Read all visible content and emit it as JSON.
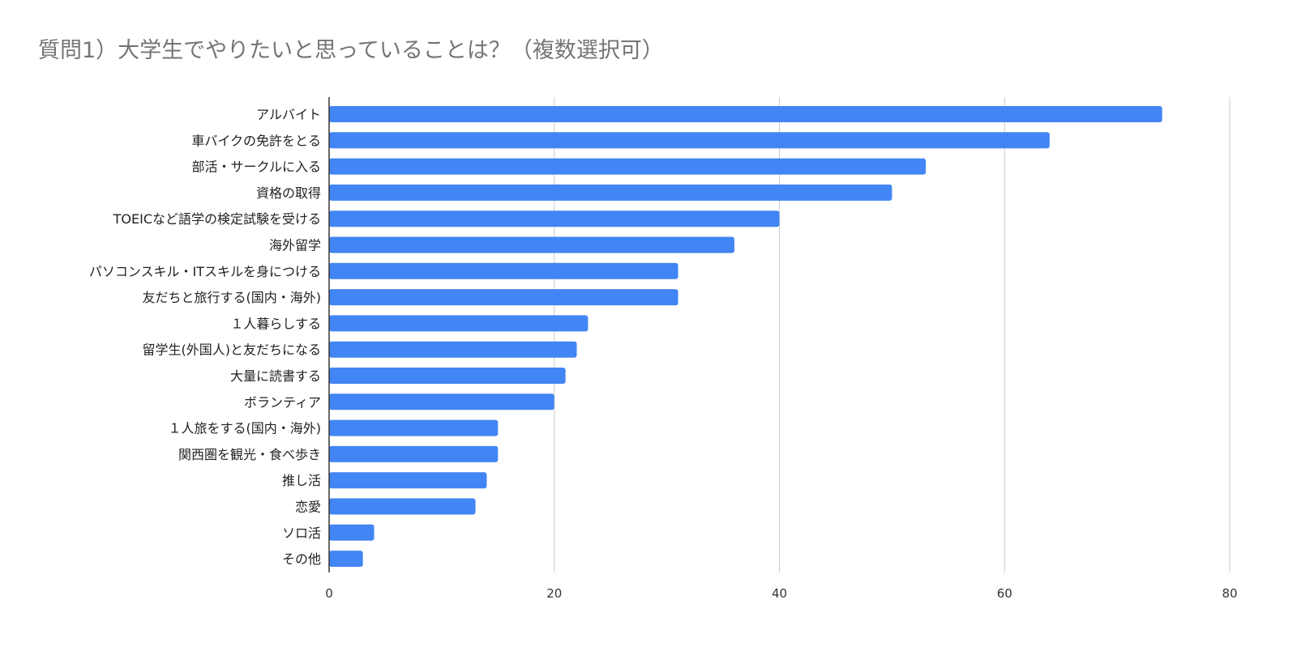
{
  "chart_data": {
    "type": "bar",
    "orientation": "horizontal",
    "title": "質問1）大学生でやりたいと思っていることは？（複数選択可）",
    "xlabel": "",
    "ylabel": "",
    "xlim": [
      0,
      80
    ],
    "ticks": [
      0,
      20,
      40,
      60,
      80
    ],
    "grid": true,
    "bar_color": "#4285f4",
    "categories": [
      "アルバイト",
      "車バイクの免許をとる",
      "部活・サークルに入る",
      "資格の取得",
      "TOEICなど語学の検定試験を受ける",
      "海外留学",
      "パソコンスキル・ITスキルを身につける",
      "友だちと旅行する(国内・海外)",
      "１人暮らしする",
      "留学生(外国人)と友だちになる",
      "大量に読書する",
      "ボランティア",
      "１人旅をする(国内・海外)",
      "関西圏を観光・食べ歩き",
      "推し活",
      "恋愛",
      "ソロ活",
      "その他"
    ],
    "values": [
      74,
      64,
      53,
      50,
      40,
      36,
      31,
      31,
      23,
      22,
      21,
      20,
      15,
      15,
      14,
      13,
      4,
      3
    ]
  }
}
